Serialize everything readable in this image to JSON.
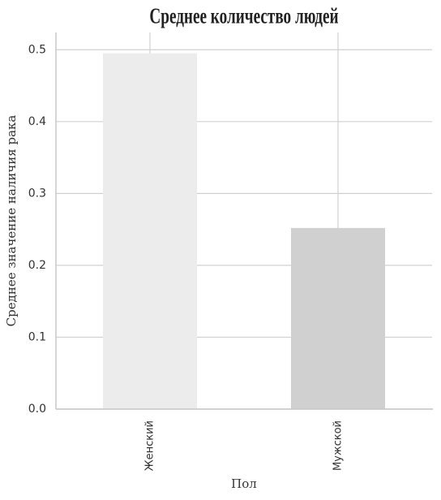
{
  "chart_data": {
    "type": "bar",
    "title": "Среднее количество людей",
    "x_label": "Пол",
    "y_label": "Среднее значение наличия рака",
    "categories": [
      "Женский",
      "Мужской"
    ],
    "values": [
      0.495,
      0.252
    ],
    "colors": [
      "#ececec",
      "#d0d0d0"
    ],
    "ylim": [
      0,
      0.524
    ],
    "yticks": [
      {
        "value": 0,
        "label": "0.0"
      },
      0.1,
      0.2,
      0.3,
      0.4,
      0.5
    ],
    "grid": true
  }
}
